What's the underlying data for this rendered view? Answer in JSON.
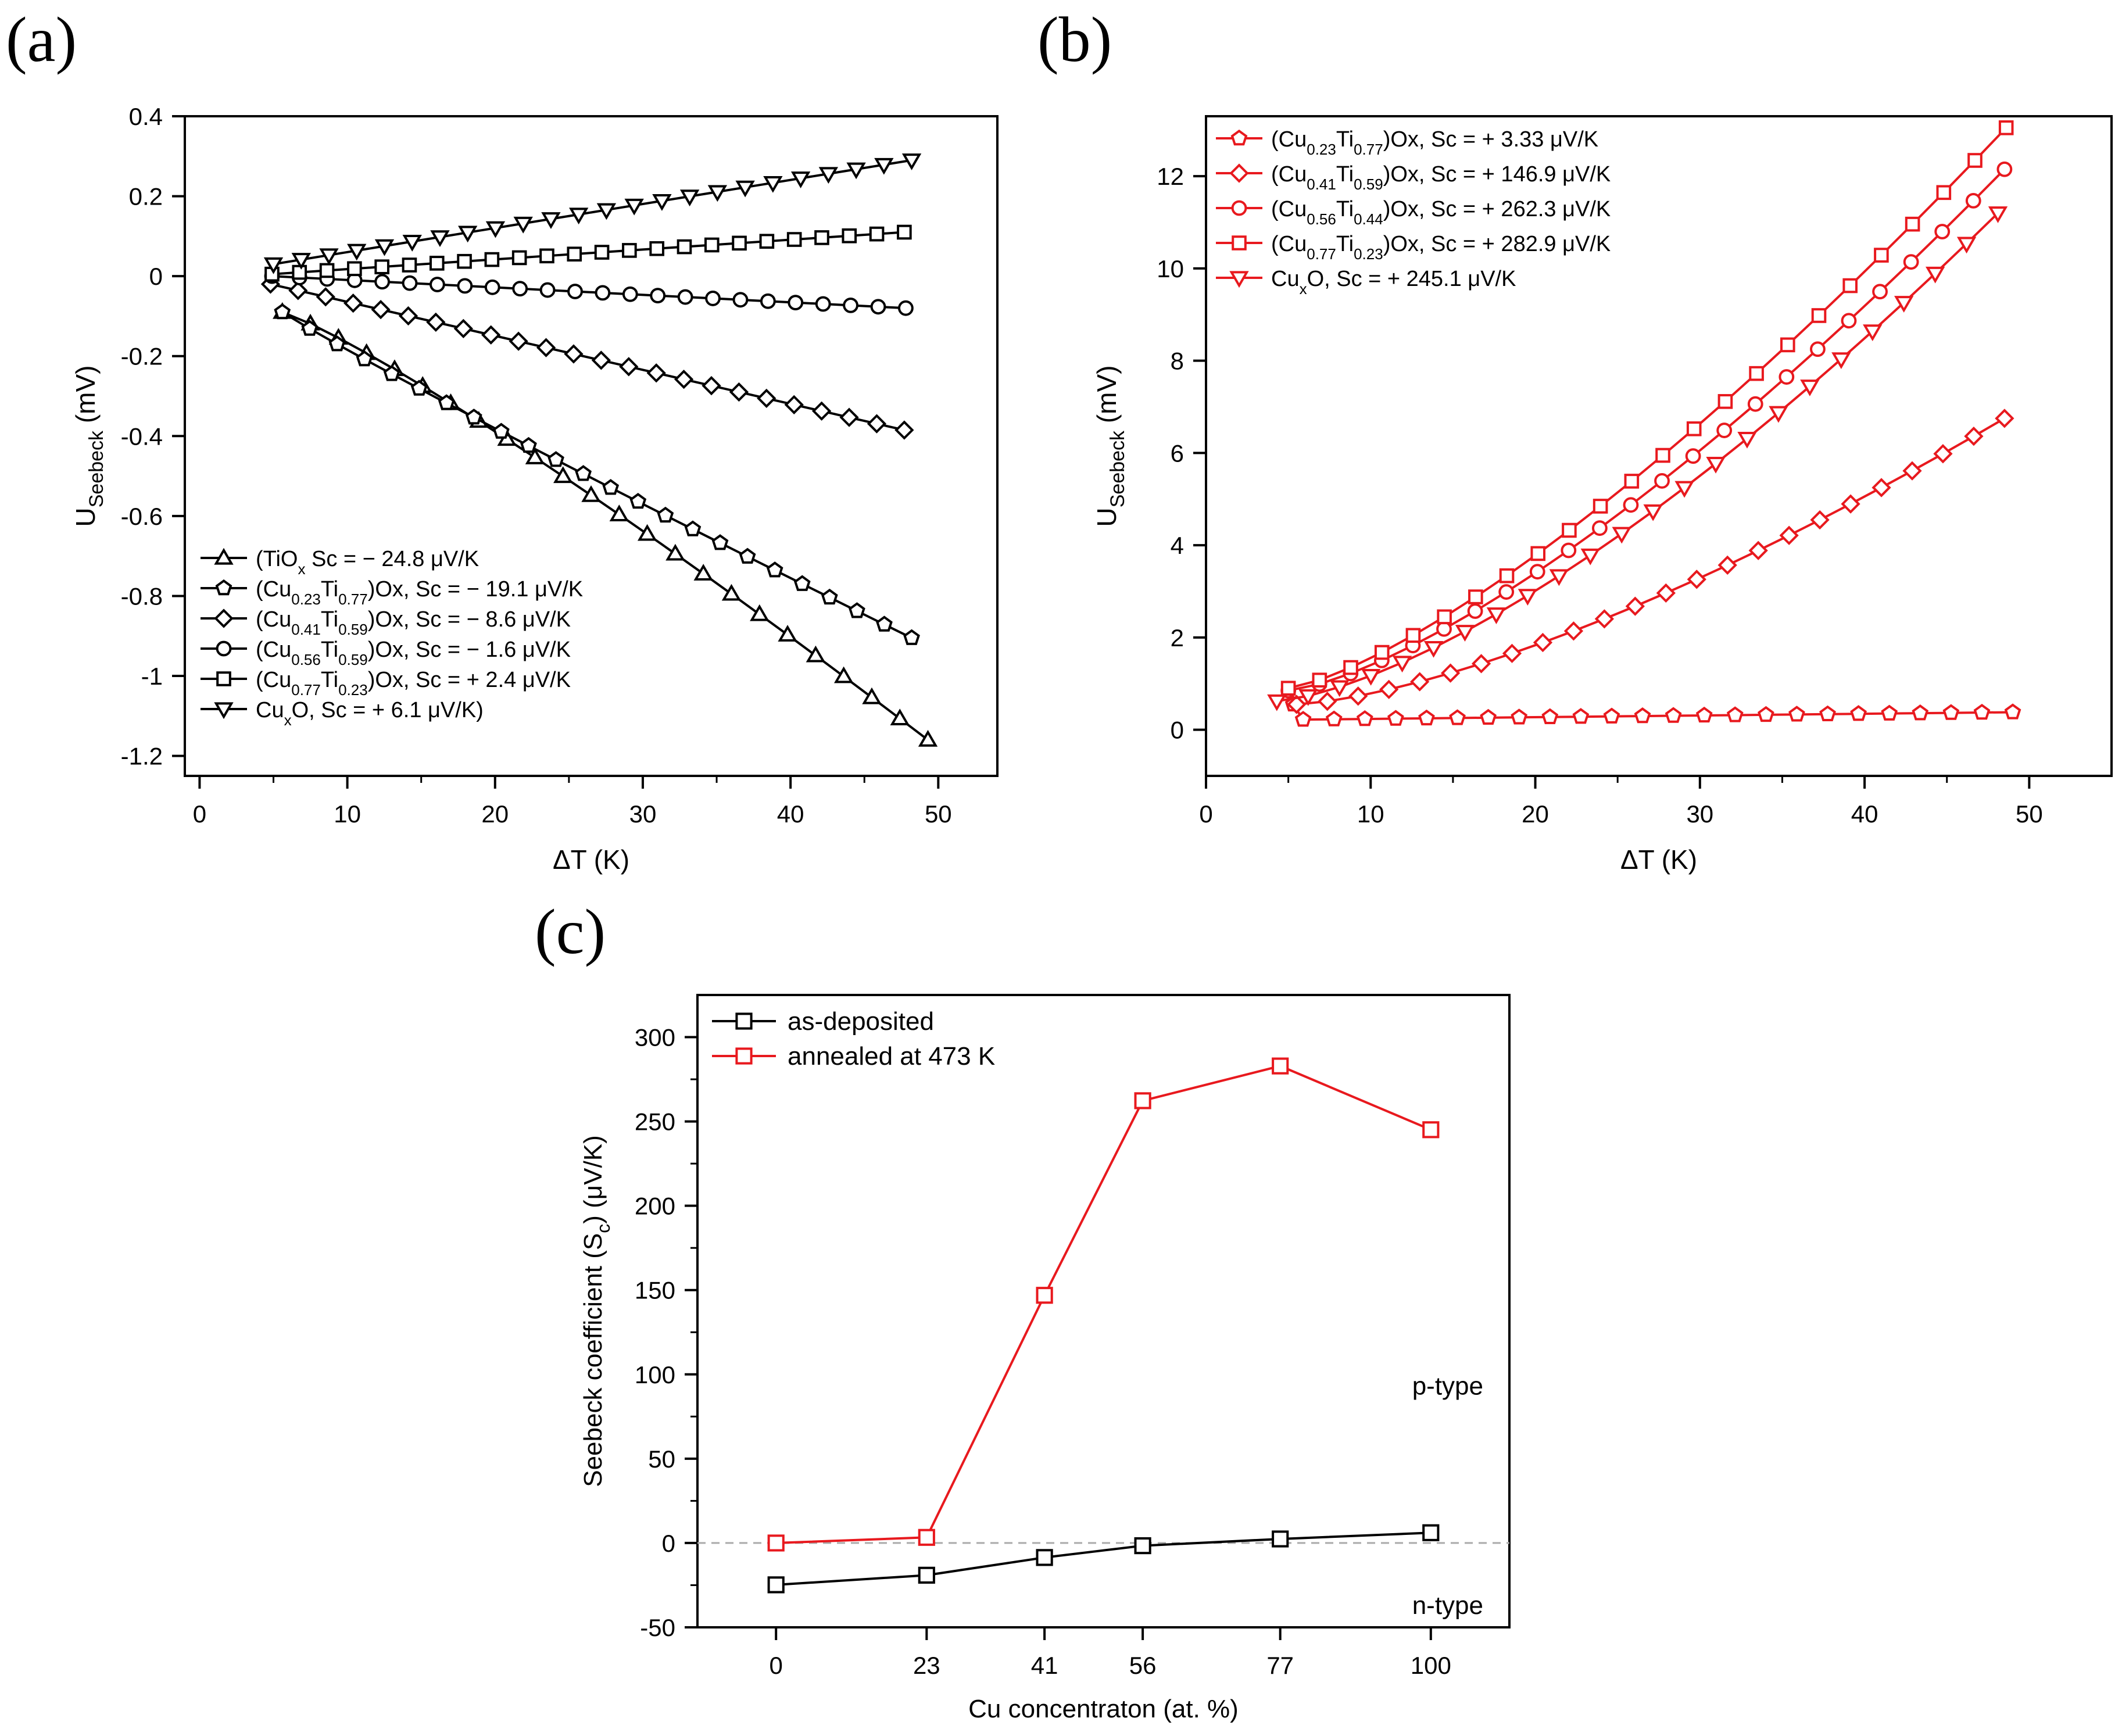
{
  "panels": {
    "a": "(a)",
    "b": "(b)",
    "c": "(c)"
  },
  "colors": {
    "black": "#000000",
    "red": "#e8191e",
    "grid": "#aaaaaa"
  },
  "chart_data": [
    {
      "id": "a",
      "type": "line",
      "xlabel": "ΔT (K)",
      "ylabel_main": "U",
      "ylabel_sub": "Seebeck",
      "ylabel_unit": " (mV)",
      "xlim": [
        -1,
        54
      ],
      "ylim": [
        -1.25,
        0.4
      ],
      "xticks": [
        0,
        10,
        20,
        30,
        40,
        50
      ],
      "xtick_labels": [
        "0",
        "10",
        "20",
        "30",
        "40",
        "50"
      ],
      "yticks": [
        0.4,
        0.2,
        0,
        -0.2,
        -0.4,
        -0.6,
        -0.8,
        -1,
        -1.2
      ],
      "ytick_labels": [
        "0.4",
        "0.2",
        "0",
        "-0.2",
        "-0.4",
        "-0.6",
        "-0.8",
        "-1",
        "-1.2"
      ],
      "color": "#000000",
      "legend_position": "bottom-left",
      "series": [
        {
          "legend_parts": [
            [
              "(TiO",
              ""
            ],
            [
              "x",
              "sub"
            ],
            [
              " Sc = − 24.8 μV/K",
              ""
            ]
          ],
          "marker": "triangle-up",
          "x_start": 5.6,
          "x_end": 49.3,
          "n": 24,
          "y_start": -0.09,
          "y_end": -1.16,
          "curve": 1.15
        },
        {
          "legend_parts": [
            [
              "(Cu",
              ""
            ],
            [
              "0.23",
              "sub"
            ],
            [
              "Ti",
              ""
            ],
            [
              "0.77",
              "sub"
            ],
            [
              ")Ox, Sc = − 19.1 μV/K",
              ""
            ]
          ],
          "marker": "pentagon",
          "x_start": 5.6,
          "x_end": 48.2,
          "n": 24,
          "y_start": -0.09,
          "y_end": -0.905,
          "curve": 0.95
        },
        {
          "legend_parts": [
            [
              "(Cu",
              ""
            ],
            [
              "0.41",
              "sub"
            ],
            [
              "Ti",
              ""
            ],
            [
              "0.59",
              "sub"
            ],
            [
              ")Ox,  Sc = − 8.6 μV/K",
              ""
            ]
          ],
          "marker": "diamond",
          "x_start": 4.8,
          "x_end": 47.7,
          "n": 24,
          "y_start": -0.02,
          "y_end": -0.385,
          "curve": 1.0
        },
        {
          "legend_parts": [
            [
              "(Cu",
              ""
            ],
            [
              "0.56",
              "sub"
            ],
            [
              "Ti",
              ""
            ],
            [
              "0.59",
              "sub"
            ],
            [
              ")Ox, Sc =  − 1.6 μV/K",
              ""
            ]
          ],
          "marker": "circle",
          "x_start": 4.9,
          "x_end": 47.8,
          "n": 24,
          "y_start": 0.0,
          "y_end": -0.08,
          "curve": 1.0
        },
        {
          "legend_parts": [
            [
              "(Cu",
              ""
            ],
            [
              "0.77",
              "sub"
            ],
            [
              "Ti",
              ""
            ],
            [
              "0.23",
              "sub"
            ],
            [
              ")Ox,  Sc = + 2.4  μV/K",
              ""
            ]
          ],
          "marker": "square",
          "x_start": 4.9,
          "x_end": 47.7,
          "n": 24,
          "y_start": 0.005,
          "y_end": 0.11,
          "curve": 1.0
        },
        {
          "legend_parts": [
            [
              "Cu",
              ""
            ],
            [
              "x",
              "sub"
            ],
            [
              "O, Sc = + 6.1  μV/K)",
              ""
            ]
          ],
          "marker": "triangle-down",
          "x_start": 5.0,
          "x_end": 48.2,
          "n": 24,
          "y_start": 0.03,
          "y_end": 0.29,
          "curve": 1.0
        }
      ]
    },
    {
      "id": "b",
      "type": "line",
      "xlabel": "ΔT (K)",
      "ylabel_main": "U",
      "ylabel_sub": "Seebeck",
      "ylabel_unit": " (mV)",
      "xlim": [
        0,
        55
      ],
      "ylim": [
        -1,
        13.3
      ],
      "xticks": [
        0,
        10,
        20,
        30,
        40,
        50
      ],
      "xtick_labels": [
        "0",
        "10",
        "20",
        "30",
        "40",
        "50"
      ],
      "yticks": [
        0,
        2,
        4,
        6,
        8,
        10,
        12
      ],
      "ytick_labels": [
        "0",
        "2",
        "4",
        "6",
        "8",
        "10",
        "12"
      ],
      "color": "#e8191e",
      "legend_position": "top-left",
      "series": [
        {
          "legend_parts": [
            [
              "(Cu",
              ""
            ],
            [
              "0.23",
              "sub"
            ],
            [
              "Ti",
              ""
            ],
            [
              "0.77",
              "sub"
            ],
            [
              ")Ox, Sc = + 3.33 μV/K",
              ""
            ]
          ],
          "marker": "pentagon",
          "x_start": 5.9,
          "x_end": 49.0,
          "n": 24,
          "y_start": 0.22,
          "y_end": 0.38,
          "curve": 1.0,
          "first": [
            5.3,
            0.55
          ]
        },
        {
          "legend_parts": [
            [
              "(Cu",
              ""
            ],
            [
              "0.41",
              "sub"
            ],
            [
              "Ti",
              ""
            ],
            [
              "0.59",
              "sub"
            ],
            [
              ")Ox, Sc = + 146.9 μV/K",
              ""
            ]
          ],
          "marker": "diamond",
          "x_start": 5.5,
          "x_end": 48.5,
          "n": 24,
          "y_start": 0.55,
          "y_end": 6.75,
          "curve": 1.45
        },
        {
          "legend_parts": [
            [
              "(Cu",
              ""
            ],
            [
              "0.56",
              "sub"
            ],
            [
              "Ti",
              ""
            ],
            [
              "0.44",
              "sub"
            ],
            [
              ")Ox, Sc = + 262.3 μV/K",
              ""
            ]
          ],
          "marker": "circle",
          "x_start": 5.0,
          "x_end": 48.5,
          "n": 24,
          "y_start": 0.85,
          "y_end": 12.15,
          "curve": 1.4
        },
        {
          "legend_parts": [
            [
              "(Cu",
              ""
            ],
            [
              "0.77",
              "sub"
            ],
            [
              "Ti",
              ""
            ],
            [
              "0.23",
              "sub"
            ],
            [
              ")Ox, Sc = + 282.9 μV/K",
              ""
            ]
          ],
          "marker": "square",
          "x_start": 5.0,
          "x_end": 48.6,
          "n": 24,
          "y_start": 0.9,
          "y_end": 13.05,
          "curve": 1.35
        },
        {
          "legend_parts": [
            [
              "Cu",
              ""
            ],
            [
              "x",
              "sub"
            ],
            [
              "O, Sc = + 245.1 μV/K",
              ""
            ]
          ],
          "marker": "triangle-down",
          "x_start": 4.3,
          "x_end": 48.1,
          "n": 24,
          "y_start": 0.62,
          "y_end": 11.2,
          "curve": 1.45
        }
      ]
    },
    {
      "id": "c",
      "type": "line",
      "xlabel": "Cu concentraton (at. %)",
      "ylabel": "Seebeck coefficient (S",
      "ylabel_sub": "c",
      "ylabel_unit": ") (μV/K)",
      "xlim": [
        -12,
        112
      ],
      "ylim": [
        -50,
        325
      ],
      "xticks": [
        0,
        23,
        41,
        56,
        77,
        100
      ],
      "xtick_labels": [
        "0",
        "23",
        "41",
        "56",
        "77",
        "100"
      ],
      "yticks": [
        -50,
        0,
        50,
        100,
        150,
        200,
        250,
        300
      ],
      "ytick_labels": [
        "-50",
        "0",
        "50",
        "100",
        "150",
        "200",
        "250",
        "300"
      ],
      "reference_line": 0,
      "annotations": [
        "p-type",
        "n-type"
      ],
      "legend_position": "top-left",
      "categories": [
        0,
        23,
        41,
        56,
        77,
        100
      ],
      "series": [
        {
          "name": "as-deposited",
          "color": "#000000",
          "values": [
            -24.8,
            -19.1,
            -8.6,
            -1.6,
            2.4,
            6.1
          ]
        },
        {
          "name": "annealed at 473 K",
          "color": "#e8191e",
          "values": [
            0,
            3.33,
            146.9,
            262.3,
            282.9,
            245.1
          ]
        }
      ]
    }
  ]
}
